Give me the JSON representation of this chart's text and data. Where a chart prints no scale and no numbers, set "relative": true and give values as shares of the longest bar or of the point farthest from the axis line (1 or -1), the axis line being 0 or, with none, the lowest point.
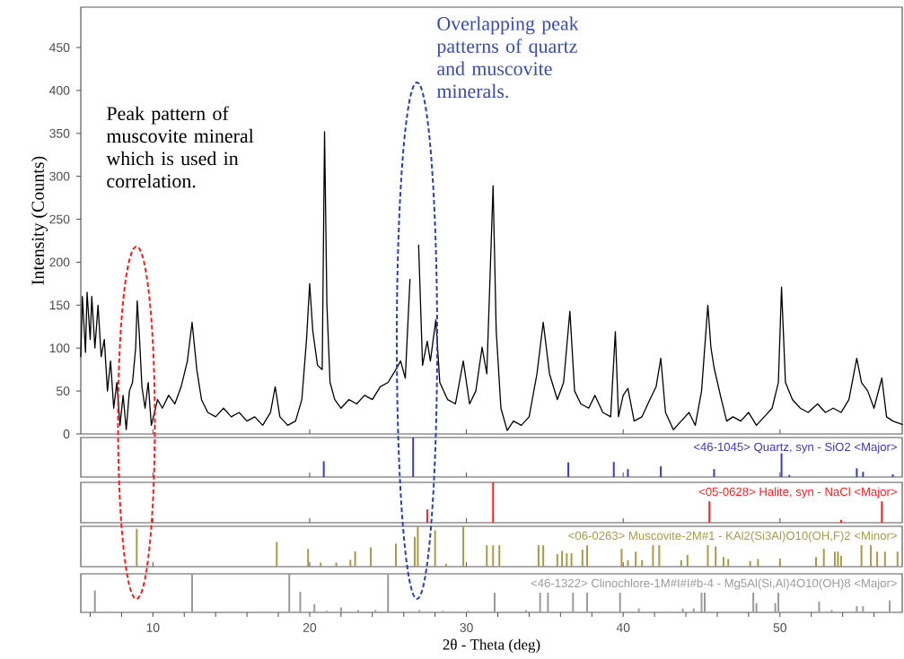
{
  "chart_data": [
    {
      "type": "line",
      "ylabel": "Intensity (Counts)",
      "color": "#000000",
      "xlim": [
        5.4,
        57.8
      ],
      "ylim": [
        0,
        497
      ],
      "yticks": [
        0,
        50,
        100,
        150,
        200,
        250,
        300,
        350,
        400,
        450
      ],
      "tick_labels": "y",
      "annotations": [
        "Peak pattern of muscovite mineral which is used in correlation.",
        "Overlapping peak patterns of quartz and muscovite minerals."
      ],
      "xticks": [
        10,
        20,
        30,
        40,
        50
      ],
      "x": [
        5.4,
        5.5,
        5.7,
        5.8,
        6.0,
        6.1,
        6.3,
        6.5,
        6.7,
        6.9,
        7.1,
        7.3,
        7.5,
        7.7,
        7.9,
        8.1,
        8.3,
        8.5,
        8.7,
        8.9,
        9.0,
        9.15,
        9.3,
        9.5,
        9.7,
        9.9,
        10.1,
        10.3,
        10.6,
        11.0,
        11.4,
        11.8,
        12.2,
        12.5,
        12.8,
        13.1,
        13.5,
        14.0,
        14.5,
        15.0,
        15.5,
        16.0,
        16.5,
        17.0,
        17.5,
        17.8,
        18.1,
        18.6,
        19.1,
        19.5,
        19.8,
        20.0,
        20.2,
        20.5,
        20.8,
        20.95,
        21.1,
        21.3,
        21.6,
        22.0,
        22.5,
        23.0,
        23.5,
        24.0,
        24.5,
        25.0,
        25.5,
        25.8,
        26.1,
        26.4,
        26.6,
        26.75,
        26.95,
        27.2,
        27.5,
        27.7,
        28.05,
        28.3,
        28.8,
        29.3,
        29.8,
        30.2,
        30.6,
        31.0,
        31.3,
        31.7,
        31.9,
        32.2,
        32.6,
        33.0,
        33.5,
        34.0,
        34.5,
        34.9,
        35.3,
        35.8,
        36.2,
        36.6,
        36.9,
        37.3,
        37.8,
        38.2,
        38.7,
        39.2,
        39.5,
        39.7,
        40.0,
        40.3,
        40.7,
        41.2,
        41.7,
        42.1,
        42.4,
        42.7,
        43.2,
        43.7,
        44.2,
        44.6,
        45.0,
        45.4,
        45.6,
        45.8,
        46.2,
        46.6,
        47.0,
        47.5,
        48.0,
        48.5,
        49.0,
        49.5,
        49.9,
        50.1,
        50.35,
        50.8,
        51.3,
        51.8,
        52.4,
        52.9,
        53.4,
        53.9,
        54.4,
        54.9,
        55.2,
        55.6,
        56.0,
        56.5,
        56.8,
        57.2,
        57.8
      ],
      "values": [
        90,
        160,
        95,
        165,
        110,
        160,
        100,
        150,
        90,
        110,
        50,
        85,
        30,
        60,
        10,
        45,
        5,
        50,
        60,
        100,
        155,
        110,
        55,
        30,
        60,
        10,
        25,
        40,
        30,
        45,
        35,
        55,
        85,
        130,
        75,
        40,
        25,
        20,
        30,
        20,
        25,
        15,
        20,
        10,
        25,
        55,
        20,
        10,
        15,
        40,
        110,
        175,
        120,
        80,
        75,
        352,
        150,
        60,
        40,
        30,
        40,
        35,
        45,
        40,
        55,
        60,
        75,
        85,
        65,
        180,
        null,
        null,
        220,
        80,
        108,
        85,
        133,
        60,
        40,
        35,
        85,
        35,
        50,
        101,
        70,
        289,
        120,
        30,
        4,
        15,
        10,
        20,
        70,
        130,
        70,
        40,
        60,
        143,
        50,
        35,
        30,
        45,
        25,
        20,
        119,
        20,
        45,
        53,
        15,
        20,
        40,
        55,
        88,
        25,
        5,
        15,
        25,
        10,
        50,
        150,
        100,
        77,
        45,
        15,
        20,
        15,
        25,
        10,
        20,
        30,
        60,
        171,
        60,
        40,
        30,
        25,
        35,
        25,
        30,
        25,
        40,
        88,
        60,
        50,
        30,
        65,
        20,
        15,
        11
      ]
    },
    {
      "type": "bar",
      "relative": true,
      "title": "<46-1045> Quartz, syn - SiO2 <Major>",
      "color": "#3c3cb4",
      "xlim": [
        5.4,
        57.8
      ],
      "tick_labels": false,
      "xticks": [
        10,
        20,
        30,
        40,
        50
      ],
      "x": [
        20.9,
        26.6,
        36.5,
        39.4,
        40.3,
        42.4,
        45.8,
        50.1,
        50.6,
        54.9,
        55.3,
        57.2
      ],
      "values": [
        0.4,
        1,
        0.37,
        0.38,
        0.2,
        0.27,
        0.2,
        0.6,
        0.05,
        0.22,
        0.13,
        0.07
      ]
    },
    {
      "type": "bar",
      "relative": true,
      "title": "<05-0628> Halite, syn - NaCl <Major>",
      "color": "#ff2020",
      "xlim": [
        5.4,
        57.8
      ],
      "tick_labels": false,
      "xticks": [
        10,
        20,
        30,
        40,
        50
      ],
      "x": [
        27.5,
        31.7,
        45.5,
        53.9,
        56.5
      ],
      "values": [
        0.33,
        1,
        0.53,
        0.07,
        0.53
      ]
    },
    {
      "type": "bar",
      "relative": true,
      "title": "<06-0263> Muscovite-2M#1 - KAl2(Si3Al)O10(OH,F)2 <Minor>",
      "color": "#a89a4a",
      "xlim": [
        5.4,
        57.8
      ],
      "tick_labels": false,
      "xticks": [
        10,
        20,
        30,
        40,
        50
      ],
      "x": [
        8.97,
        17.9,
        19.9,
        20.7,
        21.7,
        22.6,
        22.9,
        23.9,
        25.5,
        26.7,
        26.9,
        28.0,
        28.7,
        29.8,
        31.3,
        31.7,
        32.1,
        34.6,
        34.9,
        35.8,
        36.1,
        36.4,
        36.7,
        37.4,
        37.7,
        39.9,
        40.3,
        40.8,
        41.2,
        41.9,
        42.3,
        43.7,
        44.1,
        45.4,
        45.9,
        46.4,
        46.7,
        48.1,
        48.6,
        50.0,
        52.3,
        52.8,
        53.5,
        53.7,
        53.9,
        55.2,
        55.8,
        56.2,
        56.7,
        57.5
      ],
      "values": [
        0.94,
        0.61,
        0.44,
        0.1,
        0.1,
        0.17,
        0.38,
        0.48,
        0.57,
        0.74,
        1,
        0.9,
        0.07,
        1,
        0.53,
        0.53,
        0.53,
        0.53,
        0.53,
        0.31,
        0.39,
        0.33,
        0.33,
        0.42,
        0.53,
        0.44,
        0.16,
        0.37,
        0.16,
        0.53,
        0.53,
        0.16,
        0.29,
        0.53,
        0.5,
        0.24,
        0.19,
        0.14,
        0.19,
        0.2,
        0.24,
        0.44,
        0.37,
        0.37,
        0.27,
        0.53,
        0.53,
        0.37,
        0.37,
        0.37
      ]
    },
    {
      "type": "bar",
      "relative": true,
      "title": "<46-1322> Clinochlore-1M#I#I#b-4 - Mg5Al(Si,Al)4O10(OH)8 <Major>",
      "color": "#9a9a9a",
      "xlim": [
        5.4,
        57.8
      ],
      "tick_labels": "x",
      "xlabel": "2θ - Theta (deg)",
      "xticks": [
        {
          "value": 6,
          "label": null
        },
        {
          "value": 8,
          "label": null
        },
        10,
        {
          "value": 12,
          "label": null
        },
        {
          "value": 14,
          "label": null
        },
        {
          "value": 16,
          "label": null
        },
        {
          "value": 18,
          "label": null
        },
        20,
        {
          "value": 22,
          "label": null
        },
        {
          "value": 24,
          "label": null
        },
        {
          "value": 26,
          "label": null
        },
        {
          "value": 28,
          "label": null
        },
        30,
        {
          "value": 32,
          "label": null
        },
        {
          "value": 34,
          "label": null
        },
        {
          "value": 36,
          "label": null
        },
        {
          "value": 38,
          "label": null
        },
        40,
        {
          "value": 42,
          "label": null
        },
        {
          "value": 44,
          "label": null
        },
        {
          "value": 46,
          "label": null
        },
        {
          "value": 48,
          "label": null
        },
        50,
        {
          "value": 52,
          "label": null
        },
        {
          "value": 54,
          "label": null
        },
        {
          "value": 56,
          "label": null
        }
      ],
      "x": [
        6.3,
        12.5,
        18.7,
        19.4,
        20.3,
        21.1,
        22.0,
        23.1,
        24.2,
        25.0,
        27.0,
        28.5,
        30.1,
        31.8,
        33.8,
        34.7,
        35.2,
        36.8,
        37.7,
        39.8,
        41.0,
        43.8,
        44.5,
        45.0,
        45.2,
        48.3,
        48.5,
        49.7,
        49.9,
        52.5,
        53.3,
        54.9,
        55.3,
        57.0
      ],
      "values": [
        0.57,
        1,
        1,
        0.53,
        0.21,
        0.04,
        0.13,
        0.06,
        0.06,
        1,
        0.06,
        0.04,
        0.04,
        0.51,
        0.06,
        0.51,
        0.51,
        0.51,
        0.51,
        0.51,
        0.1,
        0.1,
        0.1,
        0.51,
        0.51,
        0.51,
        0.24,
        0.24,
        0.51,
        0.28,
        0.06,
        0.16,
        0.16,
        0.31
      ]
    }
  ]
}
